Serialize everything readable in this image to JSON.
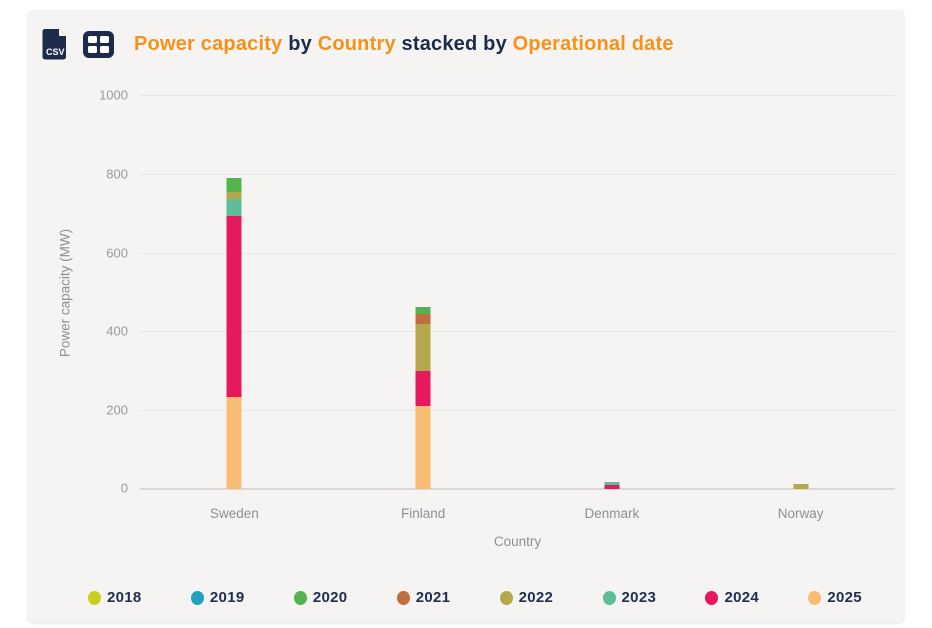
{
  "header": {
    "title_segments": [
      {
        "text": "Power capacity",
        "emphasis": true
      },
      {
        "text": " by ",
        "emphasis": false
      },
      {
        "text": "Country",
        "emphasis": true
      },
      {
        "text": " stacked by ",
        "emphasis": false
      },
      {
        "text": "Operational date",
        "emphasis": true
      }
    ],
    "icons": [
      {
        "name": "csv-export-icon"
      },
      {
        "name": "table-view-icon"
      }
    ]
  },
  "colors": {
    "accent_orange": "#f5921e",
    "dark_navy": "#1c2b4a",
    "card_background": "#f5f4f2",
    "gridline": "#e8e6e2",
    "axis_text": "#8f8f8f"
  },
  "chart_data": {
    "type": "bar",
    "stacked": true,
    "stack_order": "latest_year_at_bottom",
    "title": "Power capacity by Country stacked by Operational date",
    "xlabel": "Country",
    "ylabel": "Power capacity (MW)",
    "ylim": [
      0,
      1000
    ],
    "yticks": [
      0,
      200,
      400,
      600,
      800,
      1000
    ],
    "grid": true,
    "legend_position": "bottom",
    "categories": [
      "Sweden",
      "Finland",
      "Denmark",
      "Norway"
    ],
    "series": [
      {
        "name": "2018",
        "color": "#c9cf1f",
        "values": [
          0,
          0,
          0,
          0
        ]
      },
      {
        "name": "2019",
        "color": "#22a2bd",
        "values": [
          0,
          0,
          0,
          0
        ]
      },
      {
        "name": "2020",
        "color": "#55b24f",
        "values": [
          35,
          18,
          0,
          0
        ]
      },
      {
        "name": "2021",
        "color": "#bf6f3f",
        "values": [
          0,
          25,
          0,
          0
        ]
      },
      {
        "name": "2022",
        "color": "#b3a94c",
        "values": [
          18,
          119,
          0,
          12
        ]
      },
      {
        "name": "2023",
        "color": "#5cbd96",
        "values": [
          45,
          0,
          8,
          0
        ]
      },
      {
        "name": "2024",
        "color": "#e6195f",
        "values": [
          458,
          89,
          10,
          0
        ]
      },
      {
        "name": "2025",
        "color": "#f8bc72",
        "values": [
          234,
          211,
          0,
          0
        ]
      }
    ],
    "totals": {
      "Sweden": 790,
      "Finland": 462,
      "Denmark": 18,
      "Norway": 12
    }
  }
}
